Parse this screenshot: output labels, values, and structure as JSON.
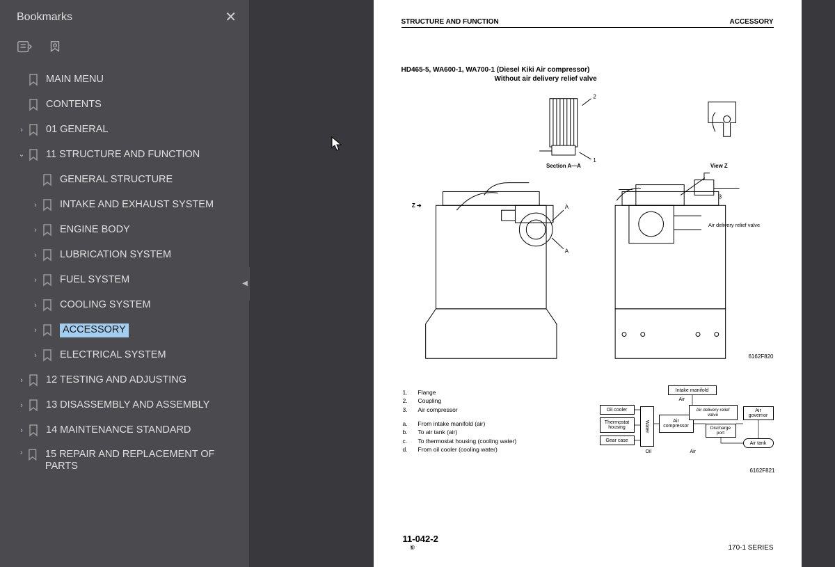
{
  "sidebar": {
    "title": "Bookmarks",
    "items": [
      {
        "label": "MAIN MENU",
        "indent": 0,
        "expand": "",
        "selected": false
      },
      {
        "label": "CONTENTS",
        "indent": 0,
        "expand": "",
        "selected": false
      },
      {
        "label": "01 GENERAL",
        "indent": 0,
        "expand": ">",
        "selected": false
      },
      {
        "label": "11 STRUCTURE AND FUNCTION",
        "indent": 0,
        "expand": "v",
        "selected": false
      },
      {
        "label": "GENERAL STRUCTURE",
        "indent": 1,
        "expand": "",
        "selected": false
      },
      {
        "label": "INTAKE AND EXHAUST SYSTEM",
        "indent": 1,
        "expand": ">",
        "selected": false
      },
      {
        "label": "ENGINE BODY",
        "indent": 1,
        "expand": ">",
        "selected": false
      },
      {
        "label": "LUBRICATION SYSTEM",
        "indent": 1,
        "expand": ">",
        "selected": false
      },
      {
        "label": "FUEL SYSTEM",
        "indent": 1,
        "expand": ">",
        "selected": false
      },
      {
        "label": "COOLING SYSTEM",
        "indent": 1,
        "expand": ">",
        "selected": false
      },
      {
        "label": "ACCESSORY",
        "indent": 1,
        "expand": ">",
        "selected": true
      },
      {
        "label": "ELECTRICAL SYSTEM",
        "indent": 1,
        "expand": ">",
        "selected": false
      },
      {
        "label": "12 TESTING AND ADJUSTING",
        "indent": 0,
        "expand": ">",
        "selected": false
      },
      {
        "label": "13 DISASSEMBLY AND ASSEMBLY",
        "indent": 0,
        "expand": ">",
        "selected": false
      },
      {
        "label": "14 MAINTENANCE STANDARD",
        "indent": 0,
        "expand": ">",
        "selected": false
      },
      {
        "label": "15 REPAIR AND REPLACEMENT OF PARTS",
        "indent": 0,
        "expand": ">",
        "selected": false,
        "wrap": true
      }
    ]
  },
  "page": {
    "header_left": "STRUCTURE AND FUNCTION",
    "header_right": "ACCESSORY",
    "title_line1": "HD465-5, WA600-1, WA700-1  (Diesel Kiki Air compressor)",
    "title_line2": "Without air delivery relief valve",
    "section_label": "Section A—A",
    "viewz_label": "View Z",
    "relief_label": "Air delivery relief valve",
    "z_arrow": "Z ➔",
    "callout_1": "1",
    "callout_2": "2",
    "callout_3": "3",
    "callout_A": "A",
    "fig_num_1": "6162F820",
    "fig_num_2": "6162F821",
    "legend_n": [
      {
        "n": "1.",
        "t": "Flange"
      },
      {
        "n": "2.",
        "t": "Coupling"
      },
      {
        "n": "3.",
        "t": "Air compressor"
      }
    ],
    "legend_a": [
      {
        "n": "a.",
        "t": "From intake manifold (air)"
      },
      {
        "n": "b.",
        "t": "To air tank (air)"
      },
      {
        "n": "c.",
        "t": "To thermostat housing (cooling water)"
      },
      {
        "n": "d.",
        "t": "From oil cooler (cooling water)"
      }
    ],
    "flow": {
      "intake": "Intake manifold",
      "oilcooler": "Oil cooler",
      "thermo": "Thermostat housing",
      "gear": "Gear case",
      "water": "Water",
      "air1": "Air",
      "aircomp": "Air compressor",
      "oil": "Oil",
      "air2": "Air",
      "relief": "Air delivery relief valve",
      "discharge": "Discharge port",
      "gov": "Air governor",
      "tank": "Air tank"
    },
    "footer_page": "11-042-2",
    "footer_sub": "⑧",
    "footer_series": "170-1 SERIES"
  },
  "colors": {
    "sidebar_bg": "#4a4a4f",
    "viewer_bg": "#38383d",
    "highlight": "#a4cef0",
    "page_bg": "#ffffff"
  }
}
